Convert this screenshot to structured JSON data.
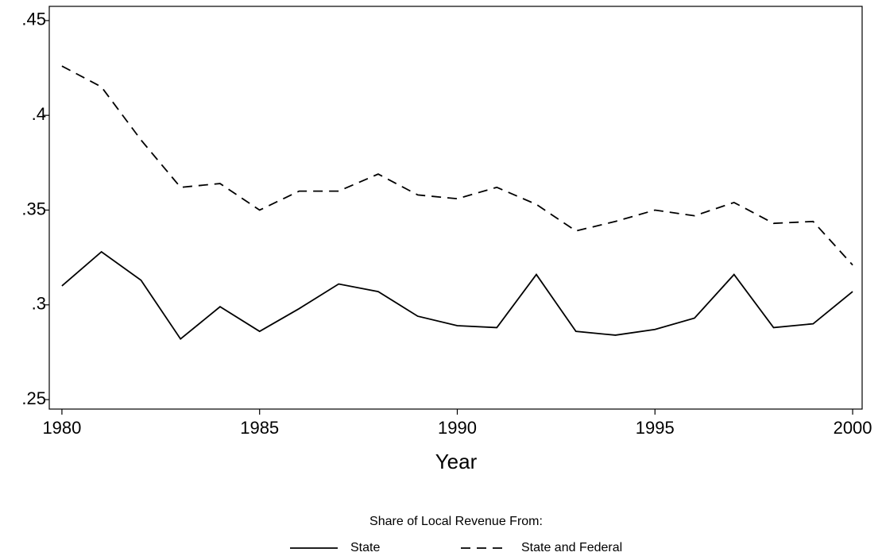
{
  "chart_data": {
    "type": "line",
    "x_label": "Year",
    "legend_title": "Share of Local Revenue From:",
    "legend": "bottom",
    "x": [
      1980,
      1981,
      1982,
      1983,
      1984,
      1985,
      1986,
      1987,
      1988,
      1989,
      1990,
      1991,
      1992,
      1993,
      1994,
      1995,
      1996,
      1997,
      1998,
      1999,
      2000
    ],
    "series": [
      {
        "name": "State",
        "color": "#000000",
        "dashed": false,
        "values": [
          0.31,
          0.328,
          0.313,
          0.282,
          0.299,
          0.286,
          0.298,
          0.311,
          0.307,
          0.294,
          0.289,
          0.288,
          0.316,
          0.286,
          0.284,
          0.287,
          0.293,
          0.316,
          0.288,
          0.29,
          0.307
        ]
      },
      {
        "name": "State and Federal",
        "color": "#000000",
        "dashed": true,
        "values": [
          0.426,
          0.415,
          0.387,
          0.362,
          0.364,
          0.35,
          0.36,
          0.36,
          0.369,
          0.358,
          0.356,
          0.362,
          0.353,
          0.339,
          0.344,
          0.35,
          0.347,
          0.354,
          0.343,
          0.344,
          0.321
        ]
      }
    ],
    "xlim": [
      1979.68,
      2000.24
    ],
    "xticks": [
      1980,
      1985,
      1990,
      1995,
      2000
    ],
    "ylim": [
      0.245,
      0.4575
    ],
    "yticks": [
      {
        "value": 0.25,
        "label": ".25"
      },
      {
        "value": 0.3,
        "label": ".3"
      },
      {
        "value": 0.35,
        "label": ".35"
      },
      {
        "value": 0.4,
        "label": ".4"
      },
      {
        "value": 0.45,
        "label": ".45"
      }
    ],
    "grid": false
  }
}
